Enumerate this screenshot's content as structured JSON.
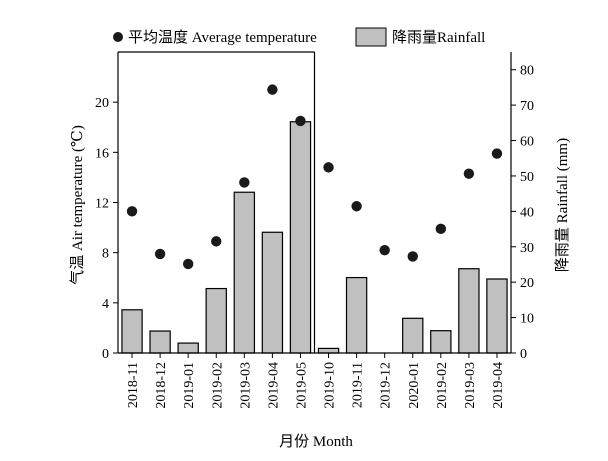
{
  "chart_data": {
    "type": "bar+scatter",
    "categories": [
      "2018-11",
      "2018-12",
      "2019-01",
      "2019-02",
      "2019-03",
      "2019-04",
      "2019-05",
      "2019-10",
      "2019-11",
      "2019-12",
      "2020-01",
      "2019-02",
      "2019-03",
      "2019-04"
    ],
    "series": [
      {
        "name": "平均温度 Average temperature",
        "type": "scatter",
        "axis": "left",
        "values": [
          11.3,
          7.9,
          7.1,
          8.9,
          13.6,
          21.0,
          18.5,
          14.8,
          11.7,
          8.2,
          7.7,
          9.9,
          14.3,
          15.9
        ]
      },
      {
        "name": "降雨量Rainfall",
        "type": "bar",
        "axis": "right",
        "values": [
          12.2,
          6.2,
          2.8,
          18.2,
          45.4,
          34.1,
          65.3,
          1.3,
          21.3,
          0,
          9.8,
          6.3,
          23.8,
          20.9
        ]
      }
    ],
    "xlabel": "月份 Month",
    "ylabel": "气温 Air temperature (℃)",
    "y2label": "降雨量 Rainfall (mm)",
    "ylim": [
      0,
      24
    ],
    "yticks": [
      0,
      4,
      8,
      12,
      16,
      20
    ],
    "y2lim": [
      0,
      85
    ],
    "y2ticks": [
      0,
      10,
      20,
      30,
      40,
      50,
      60,
      70,
      80
    ],
    "grid": false,
    "legend_position": "top",
    "divider_after_index": 6,
    "colors": {
      "bar_fill": "#c0c0c0",
      "bar_stroke": "#000000",
      "marker": "#1a1a1a"
    }
  }
}
